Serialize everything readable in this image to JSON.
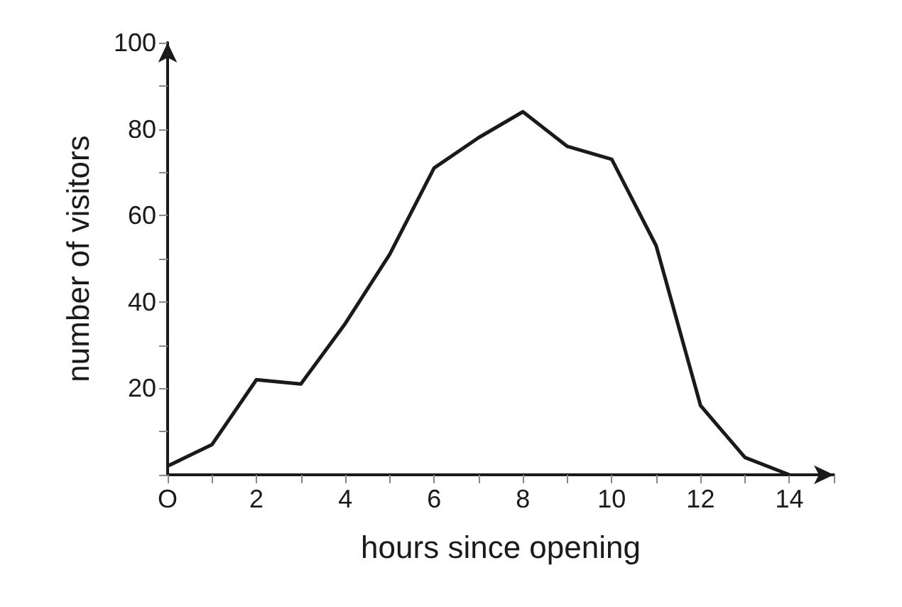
{
  "chart_data": {
    "type": "line",
    "xlabel": "hours since opening",
    "ylabel": "number of visitors",
    "x": [
      0,
      1,
      2,
      3,
      4,
      5,
      6,
      7,
      8,
      9,
      10,
      11,
      12,
      13,
      14
    ],
    "series": [
      {
        "color": "#1a1a1a",
        "values": [
          2,
          7,
          22,
          21,
          35,
          51,
          71,
          78,
          84,
          76,
          73,
          53,
          16,
          4,
          0
        ]
      }
    ],
    "xlim": [
      0,
      15
    ],
    "ylim": [
      0,
      100
    ],
    "xticks": [
      {
        "value": 0,
        "label": "O"
      },
      {
        "value": 1,
        "label": null
      },
      2,
      {
        "value": 3,
        "label": null
      },
      4,
      {
        "value": 5,
        "label": null
      },
      6,
      {
        "value": 7,
        "label": null
      },
      8,
      {
        "value": 9,
        "label": null
      },
      10,
      {
        "value": 11,
        "label": null
      },
      12,
      {
        "value": 13,
        "label": null
      },
      14,
      {
        "value": 15,
        "label": null
      }
    ],
    "yticks": [
      {
        "value": 0,
        "label": null
      },
      {
        "value": 10,
        "label": null
      },
      20,
      {
        "value": 30,
        "label": null
      },
      40,
      {
        "value": 50,
        "label": null
      },
      60,
      {
        "value": 70,
        "label": null
      },
      80,
      {
        "value": 90,
        "label": null
      },
      100
    ],
    "grid": false,
    "marker": "none",
    "line_style": "solid"
  }
}
